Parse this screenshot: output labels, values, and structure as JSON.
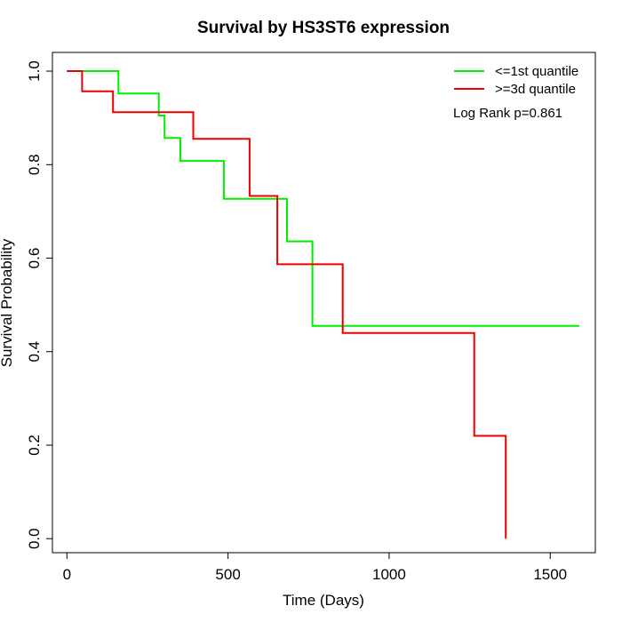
{
  "chart_data": {
    "type": "line",
    "title": "Survival by HS3ST6 expression",
    "xlabel": "Time (Days)",
    "ylabel": "Survival Probability",
    "xlim": [
      -45,
      1640
    ],
    "ylim": [
      -0.03,
      1.04
    ],
    "xticks": [
      0,
      500,
      1000,
      1500
    ],
    "yticks": [
      0.0,
      0.2,
      0.4,
      0.6,
      0.8,
      1.0
    ],
    "xtick_labels": [
      "0",
      "500",
      "1000",
      "1500"
    ],
    "ytick_labels": [
      "0.0",
      "0.2",
      "0.4",
      "0.6",
      "0.8",
      "1.0"
    ],
    "grid": false,
    "legend_position": "top-right",
    "annotation": "Log Rank p=0.861",
    "series": [
      {
        "name": "<=1st quantile",
        "color": "#00ee00",
        "points": [
          [
            0,
            1.0
          ],
          [
            160,
            1.0
          ],
          [
            160,
            0.952
          ],
          [
            285,
            0.952
          ],
          [
            285,
            0.905
          ],
          [
            303,
            0.905
          ],
          [
            303,
            0.857
          ],
          [
            352,
            0.857
          ],
          [
            352,
            0.808
          ],
          [
            487,
            0.808
          ],
          [
            487,
            0.727
          ],
          [
            683,
            0.727
          ],
          [
            683,
            0.636
          ],
          [
            762,
            0.636
          ],
          [
            762,
            0.455
          ],
          [
            1590,
            0.455
          ]
        ]
      },
      {
        "name": ">=3d quantile",
        "color": "#ee0000",
        "points": [
          [
            0,
            1.0
          ],
          [
            47,
            1.0
          ],
          [
            47,
            0.957
          ],
          [
            143,
            0.957
          ],
          [
            143,
            0.912
          ],
          [
            392,
            0.912
          ],
          [
            392,
            0.855
          ],
          [
            567,
            0.855
          ],
          [
            567,
            0.733
          ],
          [
            653,
            0.733
          ],
          [
            653,
            0.587
          ],
          [
            856,
            0.587
          ],
          [
            856,
            0.44
          ],
          [
            1264,
            0.44
          ],
          [
            1264,
            0.22
          ],
          [
            1362,
            0.22
          ],
          [
            1362,
            0.0
          ]
        ]
      }
    ]
  }
}
